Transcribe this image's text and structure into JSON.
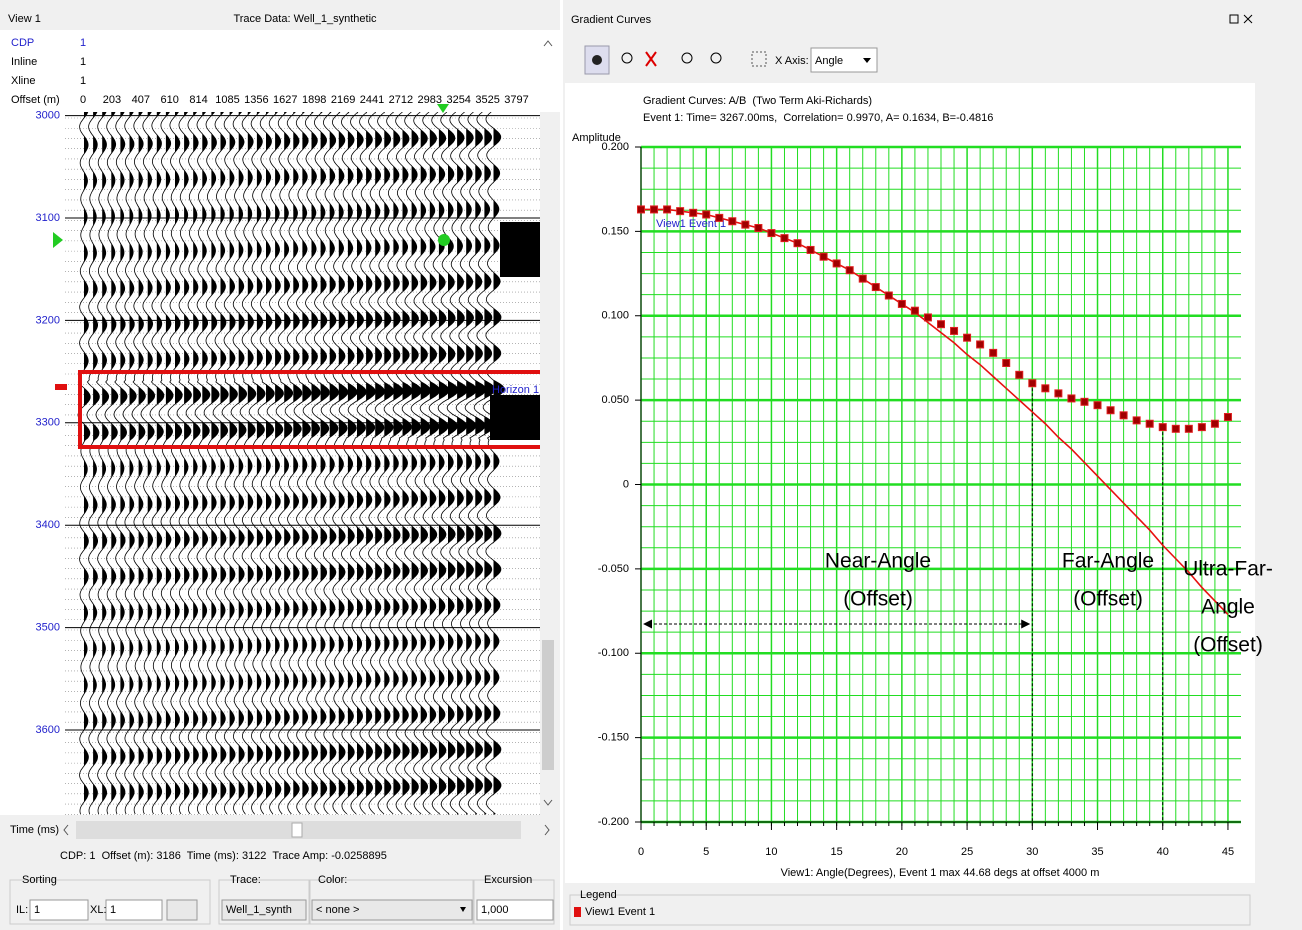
{
  "left_panel": {
    "title": "View 1",
    "trace_title": "Trace Data: Well_1_synthetic",
    "info": [
      {
        "label": "CDP",
        "value": 1
      },
      {
        "label": "Inline",
        "value": 1
      },
      {
        "label": "Xline",
        "value": 1
      }
    ],
    "offset_label": "Offset (m)",
    "offsets": [
      0,
      203,
      407,
      610,
      814,
      1085,
      1356,
      1627,
      1898,
      2169,
      2441,
      2712,
      2983,
      3254,
      3525,
      3797
    ],
    "time_ticks": [
      3000,
      3100,
      3200,
      3300,
      3400,
      3500,
      3600
    ],
    "horizon": "Horizon 1",
    "time_label": "Time (ms)",
    "status": "CDP: 1  Offset (m): 3186  Time (ms): 3122  Trace Amp: -0.0258895",
    "controls": {
      "sorting_label": "Sorting",
      "il_label": "IL:",
      "il_value": 1,
      "xl_label": "XL:",
      "xl_value": 1,
      "trace_label": "Trace:",
      "trace_value": "Well_1_synth",
      "color_label": "Color:",
      "color_value": "< none >",
      "excursion_label": "Excursion",
      "excursion_value": "1,000"
    }
  },
  "right_panel": {
    "title": "Gradient Curves",
    "x_axis_label": "X Axis:",
    "x_axis_value": "Angle",
    "legend_title": "Legend"
  },
  "chart_data": {
    "type": "line",
    "title": "Gradient Curves: A/B  (Two Term Aki-Richards)",
    "subtitle": "Event 1: Time= 3267.00ms,  Correlation= 0.9970, A= 0.1634, B=-0.4816",
    "y_label": "Amplitude",
    "x_label": "View1: Angle(Degrees), Event 1 max 44.68 degs at offset 4000 m",
    "x": [
      0,
      1,
      2,
      3,
      4,
      5,
      6,
      7,
      8,
      9,
      10,
      11,
      12,
      13,
      14,
      15,
      16,
      17,
      18,
      19,
      20,
      21,
      22,
      23,
      24,
      25,
      26,
      27,
      28,
      29,
      30,
      31,
      32,
      33,
      34,
      35,
      36,
      37,
      38,
      39,
      40,
      41,
      42,
      43,
      44,
      45
    ],
    "series": [
      {
        "name": "View1 Event 1",
        "color": "#a00000",
        "mode": "markers",
        "values": [
          0.163,
          0.163,
          0.163,
          0.162,
          0.161,
          0.16,
          0.158,
          0.156,
          0.154,
          0.152,
          0.149,
          0.146,
          0.143,
          0.139,
          0.135,
          0.131,
          0.127,
          0.122,
          0.117,
          0.112,
          0.107,
          0.103,
          0.099,
          0.095,
          0.091,
          0.087,
          0.083,
          0.078,
          0.072,
          0.065,
          0.06,
          0.057,
          0.054,
          0.051,
          0.049,
          0.047,
          0.044,
          0.041,
          0.038,
          0.036,
          0.034,
          0.033,
          0.033,
          0.034,
          0.036,
          0.04
        ]
      },
      {
        "color": "#e81010",
        "mode": "line",
        "values": [
          0.163,
          0.163,
          0.163,
          0.162,
          0.161,
          0.16,
          0.158,
          0.156,
          0.154,
          0.152,
          0.149,
          0.146,
          0.143,
          0.139,
          0.135,
          0.131,
          0.127,
          0.122,
          0.117,
          0.112,
          0.107,
          0.102,
          0.096,
          0.09,
          0.084,
          0.077,
          0.071,
          0.064,
          0.057,
          0.05,
          0.043,
          0.036,
          0.028,
          0.021,
          0.013,
          0.005,
          -0.003,
          -0.011,
          -0.019,
          -0.027,
          -0.036,
          -0.044,
          -0.052,
          -0.061,
          -0.069,
          -0.077
        ]
      }
    ],
    "xlim": [
      0,
      46
    ],
    "xticks": [
      0,
      5,
      10,
      15,
      20,
      25,
      30,
      35,
      40,
      45
    ],
    "ylim": [
      -0.2,
      0.2
    ],
    "yticks": [
      {
        "value": -0.2,
        "label": "-0.200"
      },
      {
        "value": -0.15,
        "label": "-0.150"
      },
      {
        "value": -0.1,
        "label": "-0.100"
      },
      {
        "value": -0.05,
        "label": "-0.050"
      },
      0,
      {
        "value": 0.05,
        "label": "0.050"
      },
      {
        "value": 0.1,
        "label": "0.100"
      },
      {
        "value": 0.15,
        "label": "0.150"
      },
      {
        "value": 0.2,
        "label": "0.200"
      }
    ],
    "grid": true,
    "grid_color": "#22dd22",
    "vlines": [
      30,
      40
    ],
    "annotations": [
      {
        "lines": [
          "Near-Angle",
          "(Offset)"
        ]
      },
      {
        "lines": [
          "Far-Angle",
          "(Offset)"
        ]
      },
      {
        "lines": [
          "Ultra-Far-",
          "Angle",
          "(Offset)"
        ]
      }
    ]
  }
}
